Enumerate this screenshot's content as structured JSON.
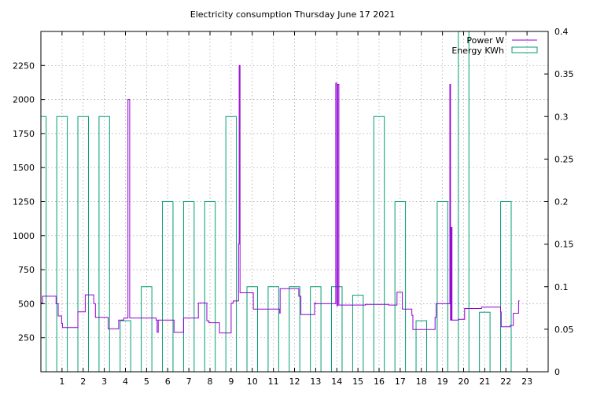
{
  "chart_data": {
    "type": "line",
    "title": "Electricity consumption Thursday June 17 2021",
    "xlabel": "",
    "ylabel": "",
    "y2label": "",
    "xlim": [
      0,
      24
    ],
    "ylim": [
      0,
      2500
    ],
    "y2lim": [
      0,
      0.4
    ],
    "xticks": [
      1,
      2,
      3,
      4,
      5,
      6,
      7,
      8,
      9,
      10,
      11,
      12,
      13,
      14,
      15,
      16,
      17,
      18,
      19,
      20,
      21,
      22,
      23
    ],
    "yticks": [
      250,
      500,
      750,
      1000,
      1250,
      1500,
      1750,
      2000,
      2250
    ],
    "y2ticks": [
      0,
      0.05,
      0.1,
      0.15,
      0.2,
      0.25,
      0.3,
      0.35,
      0.4
    ],
    "grid": true,
    "legend_placement": "top-right",
    "colors": {
      "power": "#9400d3",
      "energy": "#009e73",
      "grid": "#a0a0a0"
    },
    "series": [
      {
        "name": "Power W",
        "axis": "left",
        "style": "line",
        "points": [
          [
            0.0,
            505
          ],
          [
            0.08,
            505
          ],
          [
            0.08,
            555
          ],
          [
            0.72,
            555
          ],
          [
            0.72,
            500
          ],
          [
            0.82,
            500
          ],
          [
            0.82,
            410
          ],
          [
            0.98,
            410
          ],
          [
            0.98,
            355
          ],
          [
            1.02,
            355
          ],
          [
            1.02,
            325
          ],
          [
            1.75,
            325
          ],
          [
            1.75,
            440
          ],
          [
            2.1,
            440
          ],
          [
            2.1,
            565
          ],
          [
            2.5,
            565
          ],
          [
            2.5,
            500
          ],
          [
            2.58,
            500
          ],
          [
            2.58,
            400
          ],
          [
            3.18,
            400
          ],
          [
            3.18,
            315
          ],
          [
            3.68,
            315
          ],
          [
            3.68,
            380
          ],
          [
            3.92,
            380
          ],
          [
            3.92,
            395
          ],
          [
            4.12,
            395
          ],
          [
            4.12,
            2000
          ],
          [
            4.2,
            2000
          ],
          [
            4.2,
            395
          ],
          [
            5.0,
            395
          ],
          [
            5.0,
            395
          ],
          [
            5.45,
            395
          ],
          [
            5.45,
            380
          ],
          [
            5.5,
            380
          ],
          [
            5.5,
            290
          ],
          [
            5.55,
            290
          ],
          [
            5.55,
            380
          ],
          [
            6.3,
            380
          ],
          [
            6.3,
            290
          ],
          [
            6.75,
            290
          ],
          [
            6.75,
            395
          ],
          [
            7.45,
            395
          ],
          [
            7.45,
            505
          ],
          [
            7.85,
            505
          ],
          [
            7.85,
            375
          ],
          [
            7.95,
            375
          ],
          [
            7.95,
            360
          ],
          [
            8.45,
            360
          ],
          [
            8.45,
            285
          ],
          [
            9.0,
            285
          ],
          [
            9.0,
            505
          ],
          [
            9.1,
            505
          ],
          [
            9.1,
            520
          ],
          [
            9.35,
            520
          ],
          [
            9.35,
            940
          ],
          [
            9.38,
            940
          ],
          [
            9.38,
            2250
          ],
          [
            9.42,
            2250
          ],
          [
            9.42,
            580
          ],
          [
            10.05,
            580
          ],
          [
            10.05,
            460
          ],
          [
            11.3,
            460
          ],
          [
            11.3,
            430
          ],
          [
            11.32,
            430
          ],
          [
            11.32,
            610
          ],
          [
            12.2,
            610
          ],
          [
            12.2,
            555
          ],
          [
            12.3,
            555
          ],
          [
            12.3,
            420
          ],
          [
            12.95,
            420
          ],
          [
            12.95,
            505
          ],
          [
            13.0,
            505
          ],
          [
            13.0,
            500
          ],
          [
            13.95,
            500
          ],
          [
            13.95,
            2120
          ],
          [
            14.0,
            2120
          ],
          [
            14.0,
            485
          ],
          [
            14.05,
            485
          ],
          [
            14.05,
            2110
          ],
          [
            14.1,
            2110
          ],
          [
            14.1,
            490
          ],
          [
            15.35,
            490
          ],
          [
            15.35,
            495
          ],
          [
            16.45,
            495
          ],
          [
            16.45,
            490
          ],
          [
            16.85,
            490
          ],
          [
            16.85,
            585
          ],
          [
            17.1,
            585
          ],
          [
            17.1,
            460
          ],
          [
            17.55,
            460
          ],
          [
            17.55,
            415
          ],
          [
            17.6,
            415
          ],
          [
            17.6,
            310
          ],
          [
            18.65,
            310
          ],
          [
            18.65,
            400
          ],
          [
            18.7,
            400
          ],
          [
            18.7,
            500
          ],
          [
            19.35,
            500
          ],
          [
            19.35,
            2110
          ],
          [
            19.38,
            2110
          ],
          [
            19.38,
            380
          ],
          [
            19.42,
            380
          ],
          [
            19.42,
            1060
          ],
          [
            19.45,
            1060
          ],
          [
            19.45,
            380
          ],
          [
            19.75,
            380
          ],
          [
            19.75,
            385
          ],
          [
            20.05,
            385
          ],
          [
            20.05,
            465
          ],
          [
            20.85,
            465
          ],
          [
            20.85,
            475
          ],
          [
            21.75,
            475
          ],
          [
            21.75,
            440
          ],
          [
            21.78,
            440
          ],
          [
            21.78,
            330
          ],
          [
            22.2,
            330
          ],
          [
            22.2,
            340
          ],
          [
            22.35,
            340
          ],
          [
            22.35,
            430
          ],
          [
            22.6,
            430
          ],
          [
            22.6,
            520
          ],
          [
            22.65,
            520
          ]
        ]
      },
      {
        "name": "Energy KWh",
        "axis": "right",
        "style": "boxes",
        "x": [
          0,
          1,
          2,
          3,
          4,
          5,
          6,
          7,
          8,
          9,
          10,
          11,
          12,
          13,
          14,
          15,
          16,
          17,
          18,
          19,
          20,
          21,
          22,
          23
        ],
        "values": [
          0.3,
          0.3,
          0.3,
          0.3,
          0.06,
          0.1,
          0.2,
          0.2,
          0.2,
          0.3,
          0.1,
          0.1,
          0.1,
          0.1,
          0.1,
          0.09,
          0.3,
          0.2,
          0.06,
          0.2,
          0.4,
          0.07,
          0.2,
          0.0
        ],
        "box_width": 0.5
      }
    ]
  }
}
